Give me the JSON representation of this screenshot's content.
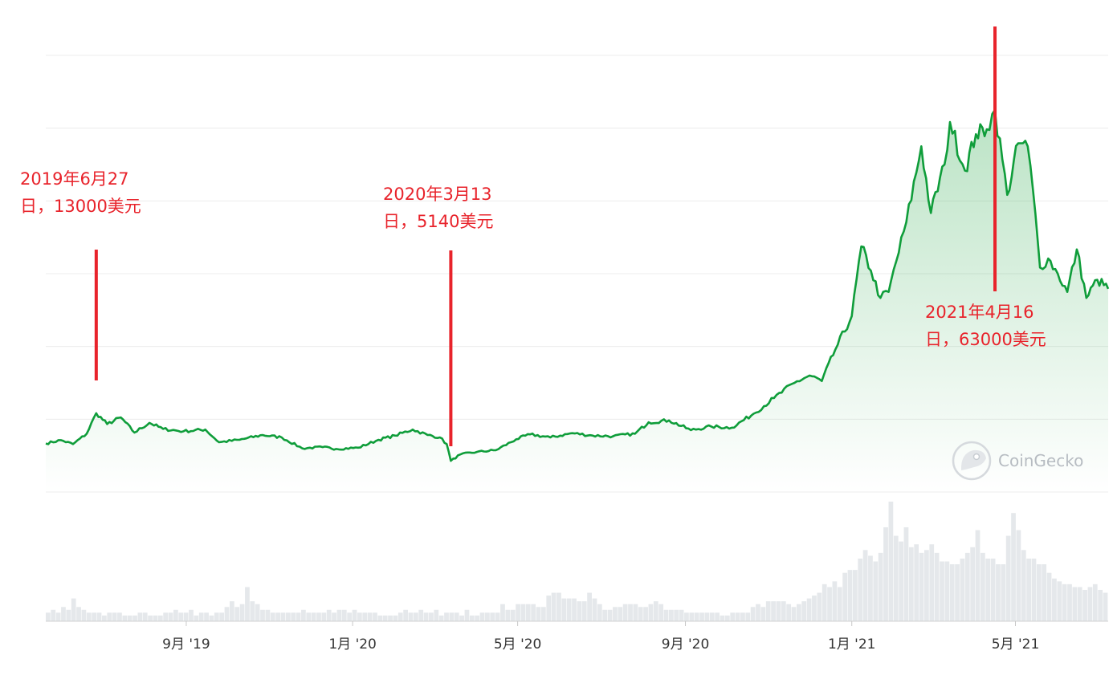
{
  "chart_data": {
    "type": "area",
    "title": "",
    "xlabel": "",
    "ylabel": "",
    "x_range": [
      "2019-05-21",
      "2021-07-08"
    ],
    "ylim": [
      0,
      72000
    ],
    "grid": true,
    "legend": "none",
    "x_ticks": [
      {
        "date": "2019-09-01",
        "label": "9月 '19"
      },
      {
        "date": "2020-01-01",
        "label": "1月 '20"
      },
      {
        "date": "2020-05-01",
        "label": "5月 '20"
      },
      {
        "date": "2020-09-01",
        "label": "9月 '20"
      },
      {
        "date": "2021-01-01",
        "label": "1月 '21"
      },
      {
        "date": "2021-05-01",
        "label": "5月 '21"
      }
    ],
    "price_series": {
      "name": "",
      "color": "#0f9d3a",
      "fill_color": "#2aa84a",
      "points": [
        [
          "2019-05-21",
          8000
        ],
        [
          "2019-06-01",
          8550
        ],
        [
          "2019-06-10",
          7900
        ],
        [
          "2019-06-20",
          9600
        ],
        [
          "2019-06-27",
          13000
        ],
        [
          "2019-07-05",
          11200
        ],
        [
          "2019-07-15",
          12300
        ],
        [
          "2019-07-25",
          9800
        ],
        [
          "2019-08-05",
          11400
        ],
        [
          "2019-08-15",
          10400
        ],
        [
          "2019-08-30",
          10000
        ],
        [
          "2019-09-15",
          10300
        ],
        [
          "2019-09-25",
          8200
        ],
        [
          "2019-10-10",
          8600
        ],
        [
          "2019-10-27",
          9400
        ],
        [
          "2019-11-10",
          9000
        ],
        [
          "2019-11-25",
          7200
        ],
        [
          "2019-12-10",
          7400
        ],
        [
          "2019-12-20",
          7100
        ],
        [
          "2020-01-05",
          7300
        ],
        [
          "2020-01-20",
          8600
        ],
        [
          "2020-02-01",
          9300
        ],
        [
          "2020-02-14",
          10300
        ],
        [
          "2020-02-25",
          9400
        ],
        [
          "2020-03-05",
          9000
        ],
        [
          "2020-03-10",
          7900
        ],
        [
          "2020-03-13",
          5140
        ],
        [
          "2020-03-20",
          6200
        ],
        [
          "2020-04-01",
          6600
        ],
        [
          "2020-04-15",
          6900
        ],
        [
          "2020-04-30",
          8700
        ],
        [
          "2020-05-10",
          9500
        ],
        [
          "2020-05-25",
          9000
        ],
        [
          "2020-06-10",
          9700
        ],
        [
          "2020-06-25",
          9300
        ],
        [
          "2020-07-10",
          9200
        ],
        [
          "2020-07-26",
          9600
        ],
        [
          "2020-08-05",
          11500
        ],
        [
          "2020-08-20",
          11800
        ],
        [
          "2020-09-05",
          10200
        ],
        [
          "2020-09-20",
          10800
        ],
        [
          "2020-10-05",
          10600
        ],
        [
          "2020-10-21",
          12900
        ],
        [
          "2020-11-05",
          15500
        ],
        [
          "2020-11-20",
          18000
        ],
        [
          "2020-12-01",
          19200
        ],
        [
          "2020-12-10",
          18300
        ],
        [
          "2020-12-20",
          23500
        ],
        [
          "2021-01-01",
          29000
        ],
        [
          "2021-01-08",
          40500
        ],
        [
          "2021-01-15",
          36500
        ],
        [
          "2021-01-22",
          32000
        ],
        [
          "2021-01-28",
          33000
        ],
        [
          "2021-02-10",
          44500
        ],
        [
          "2021-02-21",
          57000
        ],
        [
          "2021-02-28",
          46000
        ],
        [
          "2021-03-10",
          54000
        ],
        [
          "2021-03-14",
          61000
        ],
        [
          "2021-03-25",
          53000
        ],
        [
          "2021-04-02",
          59000
        ],
        [
          "2021-04-10",
          59800
        ],
        [
          "2021-04-16",
          63000
        ],
        [
          "2021-04-25",
          49000
        ],
        [
          "2021-05-03",
          57500
        ],
        [
          "2021-05-10",
          57000
        ],
        [
          "2021-05-14",
          49500
        ],
        [
          "2021-05-19",
          37000
        ],
        [
          "2021-05-25",
          38500
        ],
        [
          "2021-06-01",
          36000
        ],
        [
          "2021-06-08",
          33000
        ],
        [
          "2021-06-15",
          40000
        ],
        [
          "2021-06-22",
          32000
        ],
        [
          "2021-06-30",
          35000
        ],
        [
          "2021-07-08",
          33500
        ]
      ]
    },
    "volume_series": {
      "name": "",
      "color": "#e5e8eb",
      "values": [
        3,
        4,
        3,
        5,
        4,
        8,
        5,
        4,
        3,
        3,
        3,
        2,
        3,
        3,
        3,
        2,
        2,
        2,
        3,
        3,
        2,
        2,
        2,
        3,
        3,
        4,
        3,
        3,
        4,
        2,
        3,
        3,
        2,
        3,
        3,
        5,
        7,
        5,
        6,
        12,
        7,
        6,
        4,
        4,
        3,
        3,
        3,
        3,
        3,
        3,
        4,
        3,
        3,
        3,
        3,
        4,
        3,
        4,
        4,
        3,
        4,
        3,
        3,
        3,
        3,
        2,
        2,
        2,
        2,
        3,
        4,
        3,
        3,
        4,
        3,
        3,
        4,
        2,
        3,
        3,
        3,
        2,
        4,
        2,
        2,
        3,
        3,
        3,
        3,
        6,
        4,
        4,
        6,
        6,
        6,
        6,
        5,
        5,
        9,
        10,
        10,
        8,
        8,
        8,
        7,
        7,
        10,
        8,
        6,
        4,
        4,
        5,
        5,
        6,
        6,
        6,
        5,
        5,
        6,
        7,
        6,
        4,
        4,
        4,
        4,
        3,
        3,
        3,
        3,
        3,
        3,
        3,
        2,
        2,
        3,
        3,
        3,
        3,
        5,
        6,
        5,
        7,
        7,
        7,
        7,
        6,
        5,
        6,
        7,
        8,
        9,
        10,
        13,
        12,
        14,
        12,
        17,
        18,
        18,
        22,
        25,
        23,
        21,
        24,
        33,
        42,
        30,
        28,
        33,
        26,
        27,
        24,
        25,
        27,
        24,
        21,
        21,
        20,
        20,
        22,
        24,
        26,
        32,
        24,
        22,
        22,
        20,
        20,
        30,
        38,
        32,
        25,
        22,
        22,
        20,
        20,
        17,
        15,
        14,
        13,
        13,
        12,
        12,
        11,
        12,
        13,
        11,
        10
      ]
    },
    "annotations": [
      {
        "date": "2019-06-27",
        "value": 13000,
        "text": "2019年6月27\n日，13000美元"
      },
      {
        "date": "2020-03-13",
        "value": 5140,
        "text": "2020年3月13\n日，5140美元"
      },
      {
        "date": "2021-04-16",
        "value": 63000,
        "text": "2021年4月16\n日，63000美元"
      }
    ],
    "annotation_color": "#e8232b"
  },
  "watermark": {
    "text": "CoinGecko",
    "icon": "gecko-logo-icon"
  }
}
